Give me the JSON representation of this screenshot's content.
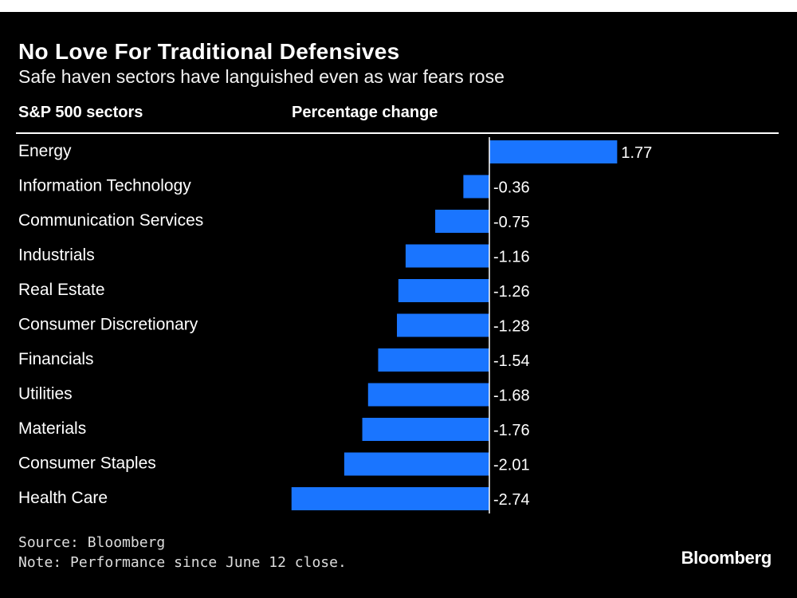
{
  "title": "No Love For Traditional Defensives",
  "subtitle": "Safe haven sectors have languished even as war fears rose",
  "column_headers": {
    "left": "S&P 500 sectors",
    "right": "Percentage change"
  },
  "source": "Source: Bloomberg",
  "note": "Note: Performance since June 12 close.",
  "brand": "Bloomberg",
  "colors": {
    "bar": "#1a75ff",
    "background": "#000000",
    "text": "#ffffff"
  },
  "chart_data": {
    "type": "bar",
    "orientation": "horizontal",
    "categories": [
      "Energy",
      "Information Technology",
      "Communication Services",
      "Industrials",
      "Real Estate",
      "Consumer Discretionary",
      "Financials",
      "Utilities",
      "Materials",
      "Consumer Staples",
      "Health Care"
    ],
    "values": [
      1.77,
      -0.36,
      -0.75,
      -1.16,
      -1.26,
      -1.28,
      -1.54,
      -1.68,
      -1.76,
      -2.01,
      -2.74
    ],
    "value_labels": [
      "1.77",
      "-0.36",
      "-0.75",
      "-1.16",
      "-1.26",
      "-1.28",
      "-1.54",
      "-1.68",
      "-1.76",
      "-2.01",
      "-2.74"
    ],
    "xlabel": "Percentage change",
    "ylabel": "S&P 500 sectors",
    "xlim": [
      -2.74,
      1.77
    ],
    "grid": false
  }
}
